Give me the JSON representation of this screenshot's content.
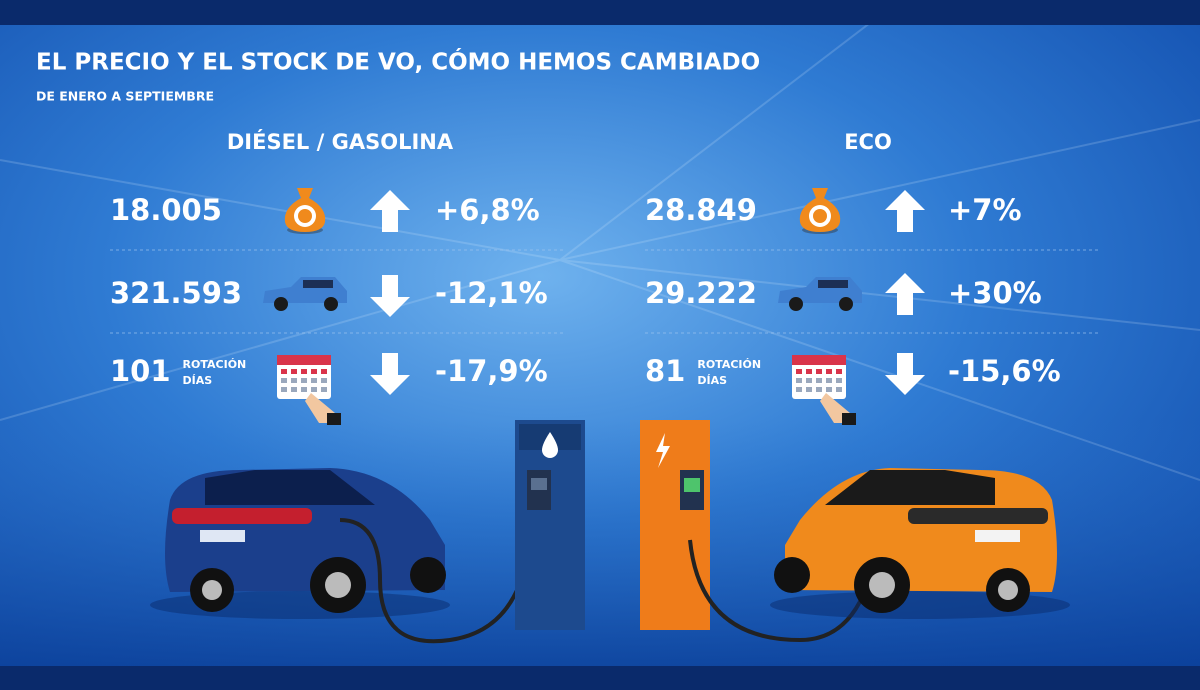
{
  "header": {
    "title": "EL PRECIO Y EL STOCK DE VO, CÓMO HEMOS CAMBIADO",
    "subtitle": "DE ENERO A SEPTIEMBRE"
  },
  "columns": [
    {
      "heading": "DIÉSEL / GASOLINA",
      "rows": [
        {
          "value": "18.005",
          "icon": "price",
          "trend": "up",
          "change": "+6,8%"
        },
        {
          "value": "321.593",
          "icon": "stock",
          "trend": "down",
          "change": "-12,1%"
        },
        {
          "value": "101",
          "label": [
            "ROTACIÓN",
            "DÍAS"
          ],
          "icon": "rotation",
          "trend": "down",
          "change": "-17,9%"
        }
      ]
    },
    {
      "heading": "ECO",
      "rows": [
        {
          "value": "28.849",
          "icon": "price",
          "trend": "up",
          "change": "+7%"
        },
        {
          "value": "29.222",
          "icon": "stock",
          "trend": "up",
          "change": "+30%"
        },
        {
          "value": "81",
          "label": [
            "ROTACIÓN",
            "DÍAS"
          ],
          "icon": "rotation",
          "trend": "down",
          "change": "-15,6%"
        }
      ]
    }
  ]
}
